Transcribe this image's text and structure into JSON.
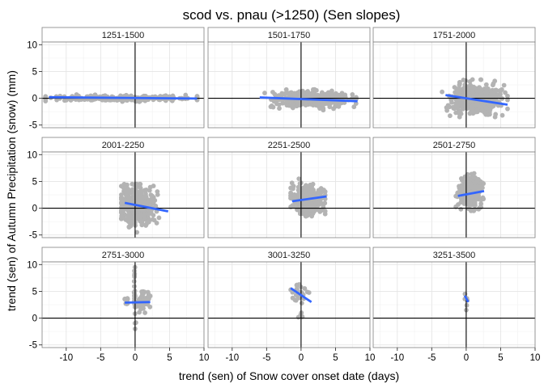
{
  "chart_data": {
    "type": "scatter",
    "title": "scod vs. pnau (>1250) (Sen slopes)",
    "xlabel": "trend (sen) of Snow cover onset date (days)",
    "ylabel": "trend (sen) of Autumn Precipitation (snow) (mm)",
    "xlim": [
      -13.5,
      10
    ],
    "ylim": [
      -5.5,
      10.5
    ],
    "xticks": [
      -10,
      -5,
      0,
      5,
      10
    ],
    "xtick_labels": [
      "-10",
      "-5",
      "0",
      "5",
      "10"
    ],
    "yticks": [
      -5,
      0,
      5,
      10
    ],
    "ytick_labels": [
      "-5",
      "0",
      "5",
      "10"
    ],
    "grid": true,
    "reference_lines": {
      "x": 0,
      "y": 0
    },
    "point_color": "#b3b3b3",
    "fit_color": "#3366ff",
    "panels": [
      {
        "label": "1251-1500",
        "clusters": [
          {
            "cx": -2,
            "cy": 0,
            "sx": 6,
            "sy": 0.25,
            "n": 260,
            "xmin": -13,
            "xmax": 9,
            "ymin": -0.9,
            "ymax": 0.9
          }
        ],
        "fit": {
          "x": [
            -12.5,
            9
          ],
          "y": [
            0.2,
            -0.05
          ]
        }
      },
      {
        "label": "1501-1750",
        "clusters": [
          {
            "cx": 1.5,
            "cy": -0.2,
            "sx": 2.6,
            "sy": 0.7,
            "n": 420,
            "xmin": -6.5,
            "xmax": 8,
            "ymin": -2.6,
            "ymax": 2.2
          }
        ],
        "fit": {
          "x": [
            -6,
            8.2
          ],
          "y": [
            0.15,
            -0.55
          ]
        }
      },
      {
        "label": "1751-2000",
        "clusters": [
          {
            "cx": 1.3,
            "cy": -0.2,
            "sx": 1.7,
            "sy": 1.3,
            "n": 520,
            "xmin": -3.5,
            "xmax": 6,
            "ymin": -3.5,
            "ymax": 3.5
          }
        ],
        "fit": {
          "x": [
            -3,
            6
          ],
          "y": [
            0.6,
            -1.2
          ]
        }
      },
      {
        "label": "2001-2250",
        "clusters": [
          {
            "cx": 0.3,
            "cy": 0.3,
            "sx": 1.2,
            "sy": 1.7,
            "n": 520,
            "xmin": -2,
            "xmax": 4.5,
            "ymin": -4.5,
            "ymax": 4.5
          }
        ],
        "fit": {
          "x": [
            -1.5,
            4.8
          ],
          "y": [
            1.0,
            -0.6
          ]
        }
      },
      {
        "label": "2251-2500",
        "clusters": [
          {
            "cx": 1,
            "cy": 1.5,
            "sx": 1.1,
            "sy": 1.3,
            "n": 420,
            "xmin": -1.5,
            "xmax": 3.5,
            "ymin": -1.5,
            "ymax": 5.5
          }
        ],
        "fit": {
          "x": [
            -1.3,
            3.7
          ],
          "y": [
            1.3,
            2.2
          ]
        }
      },
      {
        "label": "2501-2750",
        "clusters": [
          {
            "cx": 0.6,
            "cy": 3,
            "sx": 0.8,
            "sy": 1.4,
            "n": 300,
            "xmin": -1.5,
            "xmax": 2.5,
            "ymin": -0.5,
            "ymax": 6.5
          }
        ],
        "fit": {
          "x": [
            -1.2,
            2.6
          ],
          "y": [
            2.3,
            3.2
          ]
        }
      },
      {
        "label": "2751-3000",
        "clusters": [
          {
            "cx": 1.2,
            "cy": 3.2,
            "sx": 0.45,
            "sy": 0.9,
            "n": 70,
            "xmin": 0,
            "xmax": 2.2,
            "ymin": 1,
            "ymax": 6
          },
          {
            "cx": -1.2,
            "cy": 3.3,
            "sx": 0.25,
            "sy": 0.5,
            "n": 10,
            "xmin": -1.5,
            "xmax": -0.8,
            "ymin": 2.5,
            "ymax": 4
          },
          {
            "cx": -0.05,
            "cy": 3,
            "sx": 0.05,
            "sy": 3,
            "n": 28,
            "xmin": -0.2,
            "xmax": 0.15,
            "ymin": -2,
            "ymax": 9.5
          }
        ],
        "fit": {
          "x": [
            -1.5,
            2.2
          ],
          "y": [
            2.9,
            3.0
          ]
        }
      },
      {
        "label": "3001-3250",
        "clusters": [
          {
            "cx": -0.2,
            "cy": 4.6,
            "sx": 0.6,
            "sy": 0.8,
            "n": 28,
            "xmin": -1.5,
            "xmax": 1.3,
            "ymin": 2.8,
            "ymax": 6.5
          },
          {
            "cx": -0.1,
            "cy": 0.3,
            "sx": 0.2,
            "sy": 0.6,
            "n": 4,
            "xmin": -0.4,
            "xmax": 0.2,
            "ymin": -0.8,
            "ymax": 1
          }
        ],
        "fit": {
          "x": [
            -1.5,
            1.5
          ],
          "y": [
            5.6,
            3.0
          ]
        }
      },
      {
        "label": "3251-3500",
        "clusters": [
          {
            "cx": 0.1,
            "cy": 3.8,
            "sx": 0.15,
            "sy": 0.8,
            "n": 6,
            "xmin": -0.2,
            "xmax": 0.4,
            "ymin": 1.5,
            "ymax": 5
          }
        ],
        "fit": {
          "x": [
            -0.2,
            0.3
          ],
          "y": [
            4.2,
            3.0
          ]
        }
      }
    ]
  }
}
